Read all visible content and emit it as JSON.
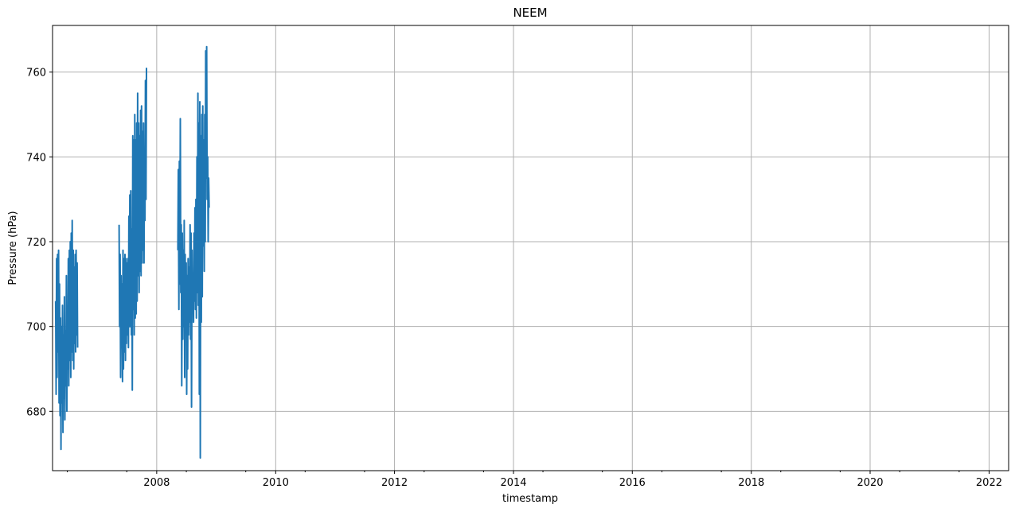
{
  "chart_data": {
    "type": "line",
    "title": "NEEM",
    "xlabel": "timestamp",
    "ylabel": "Pressure (hPa)",
    "xlim": [
      "2006-04-01",
      "2022-05-01"
    ],
    "ylim": [
      666,
      771
    ],
    "x_ticks": [
      "2008",
      "2010",
      "2012",
      "2014",
      "2016",
      "2018",
      "2020",
      "2022"
    ],
    "y_ticks": [
      "680",
      "700",
      "720",
      "740",
      "760"
    ],
    "grid": true,
    "line_color": "#1f77b4",
    "series": [
      {
        "x": [
          "2006-04-20",
          "2006-04-23",
          "2006-04-26",
          "2006-04-29",
          "2006-05-02",
          "2006-05-05",
          "2006-05-08",
          "2006-05-11",
          "2006-05-14",
          "2006-05-17",
          "2006-05-20",
          "2006-05-23",
          "2006-05-26",
          "2006-05-29",
          "2006-06-01",
          "2006-06-04",
          "2006-06-07",
          "2006-06-10",
          "2006-06-13",
          "2006-06-16",
          "2006-06-19",
          "2006-06-22",
          "2006-06-25",
          "2006-06-28",
          "2006-07-01",
          "2006-07-04",
          "2006-07-07",
          "2006-07-10",
          "2006-07-13",
          "2006-07-16",
          "2006-07-19",
          "2006-07-22",
          "2006-07-25",
          "2006-07-28",
          "2006-07-31",
          "2006-08-03",
          "2006-08-06",
          "2006-08-09",
          "2006-08-12",
          "2006-08-15",
          "2006-08-18",
          "2006-08-21",
          "2006-08-24",
          "2006-08-27",
          "2006-08-30",
          "2006-09-02",
          null,
          "2007-05-15",
          "2007-05-18",
          "2007-05-21",
          "2007-05-24",
          "2007-05-27",
          "2007-05-30",
          "2007-06-02",
          "2007-06-05",
          "2007-06-08",
          "2007-06-11",
          "2007-06-14",
          "2007-06-17",
          "2007-06-20",
          "2007-06-23",
          "2007-06-26",
          "2007-06-29",
          "2007-07-02",
          "2007-07-05",
          "2007-07-08",
          "2007-07-11",
          "2007-07-14",
          "2007-07-17",
          "2007-07-20",
          "2007-07-23",
          "2007-07-26",
          "2007-07-29",
          "2007-08-01",
          "2007-08-04",
          "2007-08-07",
          "2007-08-10",
          "2007-08-13",
          "2007-08-16",
          "2007-08-19",
          "2007-08-22",
          "2007-08-25",
          "2007-08-28",
          "2007-08-31",
          "2007-09-03",
          "2007-09-06",
          "2007-09-09",
          "2007-09-12",
          "2007-09-15",
          "2007-09-18",
          "2007-09-21",
          "2007-09-24",
          "2007-09-27",
          "2007-09-30",
          "2007-10-03",
          "2007-10-06",
          "2007-10-09",
          "2007-10-12",
          "2007-10-15",
          "2007-10-18",
          "2007-10-21",
          "2007-10-24",
          "2007-10-27",
          "2007-10-30",
          null,
          "2008-05-10",
          "2008-05-13",
          "2008-05-16",
          "2008-05-19",
          "2008-05-22",
          "2008-05-25",
          "2008-05-28",
          "2008-05-31",
          "2008-06-03",
          "2008-06-06",
          "2008-06-09",
          "2008-06-12",
          "2008-06-15",
          "2008-06-18",
          "2008-06-21",
          "2008-06-24",
          "2008-06-27",
          "2008-06-30",
          "2008-07-03",
          "2008-07-06",
          "2008-07-09",
          "2008-07-12",
          "2008-07-15",
          "2008-07-18",
          "2008-07-21",
          "2008-07-24",
          "2008-07-27",
          "2008-07-30",
          "2008-08-02",
          "2008-08-05",
          "2008-08-08",
          "2008-08-11",
          "2008-08-14",
          "2008-08-17",
          "2008-08-20",
          "2008-08-23",
          "2008-08-26",
          "2008-08-29",
          "2008-09-01",
          "2008-09-04",
          "2008-09-07",
          "2008-09-10",
          "2008-09-13",
          "2008-09-16",
          "2008-09-19",
          "2008-09-22",
          "2008-09-25",
          "2008-09-28",
          "2008-10-01",
          "2008-10-04",
          "2008-10-07",
          "2008-10-10",
          "2008-10-13",
          "2008-10-16",
          "2008-10-19",
          "2008-10-22",
          "2008-10-25",
          "2008-10-28",
          "2008-10-31",
          "2008-11-03",
          "2008-11-06",
          "2008-11-09",
          "2008-11-12",
          "2008-11-15",
          "2008-11-18"
        ],
        "y": [
          706,
          684,
          716,
          688,
          717,
          694,
          718,
          682,
          710,
          679,
          702,
          671,
          700,
          682,
          705,
          675,
          698,
          683,
          707,
          678,
          699,
          686,
          712,
          680,
          703,
          690,
          716,
          686,
          718,
          692,
          720,
          688,
          722,
          694,
          725,
          692,
          718,
          690,
          714,
          696,
          717,
          694,
          718,
          698,
          715,
          695,
          null,
          724,
          700,
          717,
          688,
          712,
          695,
          710,
          687,
          718,
          690,
          716,
          694,
          717,
          692,
          716,
          696,
          715,
          698,
          716,
          695,
          726,
          700,
          731,
          700,
          732,
          698,
          723,
          685,
          745,
          704,
          744,
          698,
          750,
          702,
          744,
          703,
          748,
          706,
          755,
          712,
          748,
          708,
          745,
          713,
          751,
          712,
          752,
          715,
          746,
          718,
          748,
          715,
          741,
          725,
          758,
          730,
          761,
          null,
          718,
          737,
          704,
          739,
          710,
          749,
          708,
          724,
          686,
          722,
          697,
          718,
          700,
          725,
          688,
          717,
          702,
          715,
          684,
          712,
          690,
          716,
          698,
          714,
          701,
          724,
          697,
          722,
          681,
          718,
          704,
          712,
          701,
          722,
          706,
          728,
          704,
          730,
          702,
          740,
          708,
          755,
          705,
          748,
          684,
          753,
          669,
          745,
          701,
          750,
          707,
          752,
          719,
          744,
          713,
          750,
          720,
          765,
          735,
          766,
          730,
          740,
          720,
          735,
          728
        ]
      }
    ]
  }
}
